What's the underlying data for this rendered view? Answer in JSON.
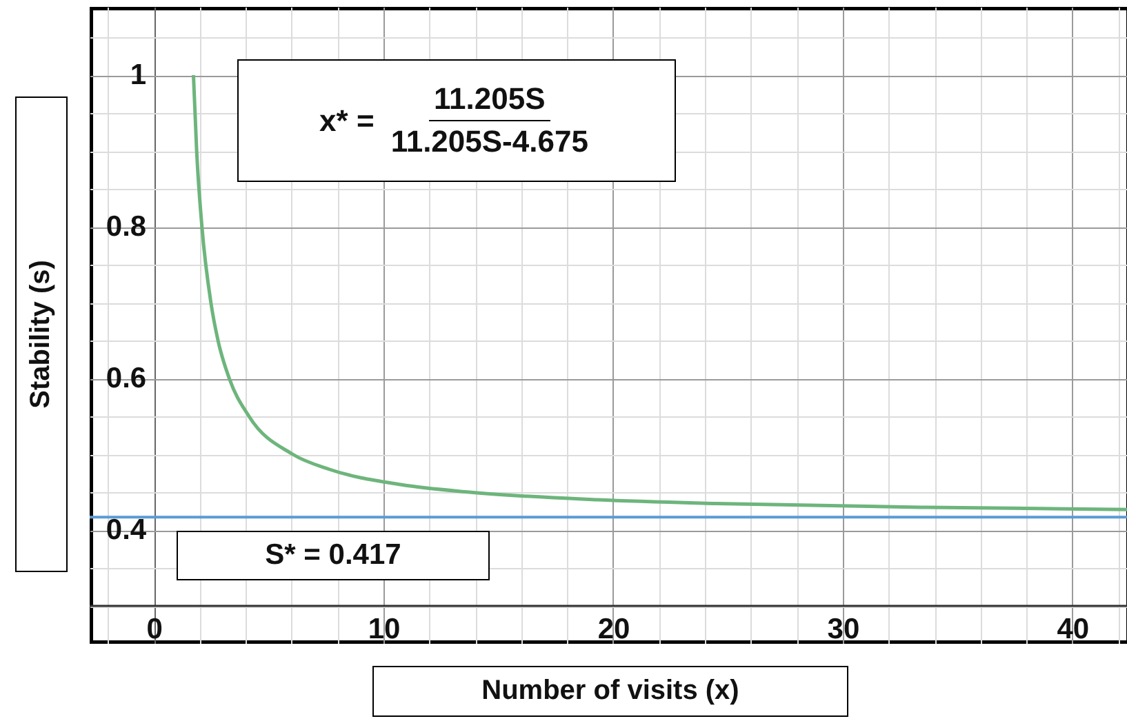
{
  "chart_data": {
    "type": "line",
    "xlabel": "Number of visits (x)",
    "ylabel": "Stability (s)",
    "x": [
      1.72,
      1.86,
      2.09,
      2.48,
      2.79,
      3.28,
      4.14,
      6.04,
      7.65,
      10.75,
      13.73,
      19.32,
      24.49,
      33.66,
      39.72,
      42.5
    ],
    "series": [
      {
        "color": "#6db57c",
        "values": [
          1,
          0.9,
          0.8,
          0.7,
          0.65,
          0.6,
          0.55,
          0.5,
          0.48,
          0.46,
          0.45,
          0.44,
          0.435,
          0.43,
          0.428,
          0.427
        ]
      }
    ],
    "xlim": [
      -2.8,
      42.5
    ],
    "ylim": [
      0.25,
      1.09
    ],
    "xticks": [
      {
        "value": -2,
        "label": null
      },
      0,
      {
        "value": 2,
        "label": null
      },
      {
        "value": 4,
        "label": null
      },
      {
        "value": 6,
        "label": null
      },
      {
        "value": 8,
        "label": null
      },
      10,
      {
        "value": 12,
        "label": null
      },
      {
        "value": 14,
        "label": null
      },
      {
        "value": 16,
        "label": null
      },
      {
        "value": 18,
        "label": null
      },
      20,
      {
        "value": 22,
        "label": null
      },
      {
        "value": 24,
        "label": null
      },
      {
        "value": 26,
        "label": null
      },
      {
        "value": 28,
        "label": null
      },
      30,
      {
        "value": 32,
        "label": null
      },
      {
        "value": 34,
        "label": null
      },
      {
        "value": 36,
        "label": null
      },
      {
        "value": 38,
        "label": null
      },
      40,
      {
        "value": 42,
        "label": null
      }
    ],
    "yticks": [
      {
        "value": 0.3,
        "label": null
      },
      {
        "value": 0.35,
        "label": null
      },
      0.4,
      {
        "value": 0.45,
        "label": null
      },
      {
        "value": 0.5,
        "label": null
      },
      {
        "value": 0.55,
        "label": null
      },
      0.6,
      {
        "value": 0.65,
        "label": null
      },
      {
        "value": 0.7,
        "label": null
      },
      {
        "value": 0.75,
        "label": null
      },
      0.8,
      {
        "value": 0.85,
        "label": null
      },
      {
        "value": 0.9,
        "label": null
      },
      {
        "value": 0.95,
        "label": null
      },
      1,
      {
        "value": 1.05,
        "label": null
      }
    ],
    "grid": true,
    "marker": "none",
    "line_style": "solid",
    "ref_lines": [
      {
        "axis": "y",
        "value": 0.417,
        "label": "S* = 0.417",
        "color": "#5b9bd5"
      },
      {
        "axis": "y",
        "value": 0.3,
        "label": null,
        "color": "#333333"
      }
    ],
    "annotations": [
      "x* =",
      "11.205S",
      "11.205S-4.675"
    ]
  }
}
